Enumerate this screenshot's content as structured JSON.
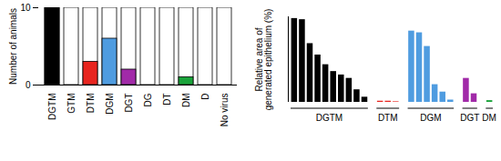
{
  "chart_data": [
    {
      "type": "bar",
      "ylabel": "Number of animals",
      "categories": [
        "DGTM",
        "GTM",
        "DTM",
        "DGM",
        "DGT",
        "DG",
        "DT",
        "DM",
        "D",
        "No virus"
      ],
      "values": [
        10,
        0,
        3,
        6,
        2,
        0,
        0,
        1,
        0,
        0
      ],
      "totals": [
        10,
        10,
        10,
        10,
        10,
        10,
        10,
        10,
        10,
        10
      ],
      "colors": [
        "#000000",
        "#000000",
        "#e8251f",
        "#4f9ce0",
        "#a12aa8",
        "#000000",
        "#000000",
        "#1aa33a",
        "#000000",
        "#000000"
      ],
      "ylim": [
        0,
        10
      ],
      "yticks": [
        0,
        10
      ]
    },
    {
      "type": "bar",
      "ylabel": "Relative area of\ngenerated epithelium (%)",
      "series": [
        {
          "name": "DGTM",
          "color": "#000000",
          "values": [
            14.7,
            14.5,
            10.3,
            8.3,
            6.6,
            5.4,
            4.8,
            4.2,
            2.2,
            0.9
          ]
        },
        {
          "name": "DTM",
          "color": "#e8251f",
          "values": [
            0.2,
            0.2,
            0.1
          ]
        },
        {
          "name": "DGM",
          "color": "#4f9ce0",
          "values": [
            12.5,
            12.2,
            9.8,
            3.1,
            1.8,
            0.4
          ]
        },
        {
          "name": "DGT",
          "color": "#a12aa8",
          "values": [
            4.2,
            1.5
          ]
        },
        {
          "name": "DM",
          "color": "#1aa33a",
          "values": [
            0.3
          ]
        }
      ],
      "ylim": [
        0,
        15
      ],
      "yticks": [],
      "tick_labels": false
    }
  ]
}
